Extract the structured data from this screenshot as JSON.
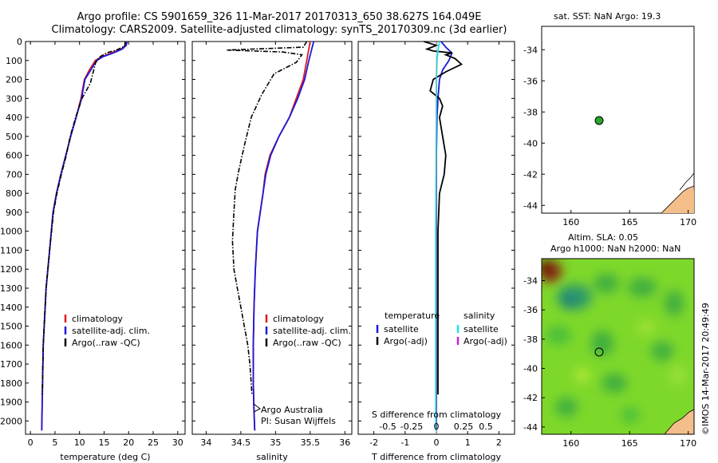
{
  "header": {
    "line1": "Argo profile: CS 5901659_326 11-Mar-2017 20170313_650 38.627S 164.049E",
    "line2": "Climatology: CARS2009. Satellite-adjusted climatology: synTS_20170309.nc (3d earlier)"
  },
  "map_top": {
    "title": "sat. SST: NaN Argo: 19.3"
  },
  "map_bottom": {
    "title1": "Altim. SLA: 0.05",
    "title2": "Argo h1000: NaN h2000: NaN"
  },
  "credit": "©IMOS 14-Mar-2017 20:49:49",
  "colors": {
    "climatology": "#e0191f",
    "satellite": "#1a1ad8",
    "argo": "#000000",
    "sal_satellite": "#1fe0e8",
    "sal_argo": "#d21fd2",
    "land": "#f4be8a",
    "float_marker": "#2aa52a"
  },
  "chart_data": [
    {
      "type": "line",
      "xlabel": "temperature (deg C)",
      "ylabel": "",
      "xlim": [
        -1,
        31.5
      ],
      "ylim": [
        2070,
        0
      ],
      "xticks": [
        0,
        5,
        10,
        15,
        20,
        25,
        30
      ],
      "yticks": [
        0,
        100,
        200,
        300,
        400,
        500,
        600,
        700,
        800,
        900,
        1000,
        1100,
        1200,
        1300,
        1400,
        1500,
        1600,
        1700,
        1800,
        1900,
        2000
      ],
      "legend": [
        "climatology",
        "satellite-adj. clim.",
        "Argo(..raw -QC)"
      ],
      "legend_position": "lower-middle",
      "series": [
        {
          "name": "climatology",
          "style": "solid",
          "x": [
            19.6,
            19.4,
            18.5,
            16.5,
            14.5,
            13.2,
            12.0,
            11.0,
            10.3,
            9.3,
            8.2,
            7.2,
            6.2,
            5.3,
            4.6,
            3.9,
            3.2,
            2.6,
            2.3
          ],
          "y": [
            0,
            20,
            40,
            60,
            80,
            100,
            150,
            200,
            300,
            400,
            500,
            600,
            700,
            800,
            900,
            1100,
            1300,
            1600,
            2050
          ]
        },
        {
          "name": "satellite-adj. clim.",
          "style": "solid",
          "x": [
            19.7,
            19.5,
            18.7,
            16.9,
            14.8,
            13.5,
            12.3,
            11.1,
            10.4,
            9.3,
            8.2,
            7.2,
            6.2,
            5.3,
            4.6,
            3.9,
            3.2,
            2.6,
            2.3
          ],
          "y": [
            0,
            20,
            40,
            60,
            80,
            100,
            150,
            200,
            300,
            400,
            500,
            600,
            700,
            800,
            900,
            1100,
            1300,
            1600,
            2050
          ]
        },
        {
          "name": "Argo(..raw -QC)",
          "style": "dashdot",
          "x": [
            19.3,
            19.2,
            17.5,
            15.5,
            14.2,
            13.3,
            12.8,
            12.2,
            10.5,
            9.2,
            8.1,
            7.3,
            6.3,
            5.4,
            4.7,
            3.9,
            3.2,
            2.6,
            2.4
          ],
          "y": [
            0,
            25,
            45,
            60,
            80,
            110,
            160,
            220,
            300,
            400,
            500,
            600,
            700,
            800,
            900,
            1100,
            1300,
            1600,
            1860
          ]
        }
      ]
    },
    {
      "type": "line",
      "xlabel": "salinity",
      "ylabel": "",
      "xlim": [
        33.8,
        36.1
      ],
      "ylim": [
        2070,
        0
      ],
      "xticks": [
        34,
        34.5,
        35,
        35.5,
        36
      ],
      "legend": [
        "climatology",
        "satellite-adj. clim.",
        "Argo(..raw -QC)"
      ],
      "legend_position": "lower-right",
      "annotations": [
        "Argo Australia",
        "PI: Susan Wijffels"
      ],
      "series": [
        {
          "name": "climatology",
          "style": "solid",
          "x": [
            35.5,
            35.45,
            35.4,
            35.3,
            35.2,
            35.05,
            34.92,
            34.85,
            34.82,
            34.78,
            34.74,
            34.71,
            34.69,
            34.68,
            34.68,
            34.69,
            34.7
          ],
          "y": [
            0,
            100,
            200,
            300,
            400,
            500,
            600,
            700,
            800,
            900,
            1000,
            1200,
            1400,
            1600,
            1800,
            1950,
            2050
          ]
        },
        {
          "name": "satellite-adj. clim.",
          "style": "solid",
          "x": [
            35.55,
            35.48,
            35.42,
            35.32,
            35.2,
            35.05,
            34.93,
            34.86,
            34.82,
            34.78,
            34.74,
            34.71,
            34.69,
            34.68,
            34.68,
            34.69,
            34.7
          ],
          "y": [
            0,
            100,
            200,
            300,
            400,
            500,
            600,
            700,
            800,
            900,
            1000,
            1200,
            1400,
            1600,
            1800,
            1950,
            2050
          ]
        },
        {
          "name": "Argo(..raw -QC)",
          "style": "dashdot",
          "x": [
            35.45,
            35.4,
            34.3,
            35.1,
            35.38,
            35.3,
            34.98,
            34.8,
            34.65,
            34.55,
            34.47,
            34.42,
            34.4,
            34.38,
            34.4,
            34.45,
            34.5,
            34.55,
            34.6,
            34.63,
            34.65,
            34.66
          ],
          "y": [
            0,
            30,
            45,
            55,
            70,
            110,
            170,
            280,
            400,
            550,
            680,
            780,
            900,
            1050,
            1200,
            1300,
            1400,
            1500,
            1600,
            1700,
            1800,
            1860
          ]
        }
      ]
    },
    {
      "type": "line",
      "xlabel": "T difference from climatology",
      "top_xlabel": "S difference from climatology",
      "ylabel": "",
      "xlim": [
        -2.5,
        2.5
      ],
      "ylim": [
        2070,
        0
      ],
      "xticks": [
        -2,
        -1,
        0,
        1,
        2
      ],
      "top_xticklabels": [
        "-0.5",
        "-0.25",
        "0",
        "0.25",
        "0.5"
      ],
      "legend_groups": {
        "temperature": [
          "satellite",
          "Argo(-adj)"
        ],
        "salinity": [
          "satellite",
          "Argo(-adj)"
        ]
      },
      "legend_position": "lower",
      "series": [
        {
          "name": "temperature satellite",
          "style": "solid",
          "x": [
            0.15,
            0.3,
            0.5,
            0.4,
            0.2,
            0.1,
            0.05,
            0.02,
            0,
            0,
            0,
            0
          ],
          "y": [
            0,
            30,
            60,
            100,
            150,
            200,
            300,
            400,
            600,
            1000,
            1500,
            2050
          ]
        },
        {
          "name": "temperature Argo(-adj)",
          "style": "solid",
          "x": [
            -0.4,
            0,
            -0.3,
            -0.1,
            0.5,
            0.3,
            0.6,
            0.8,
            0.3,
            -0.1,
            -0.2,
            0.1,
            0.2,
            0.1,
            0.2,
            0.3,
            0.25,
            0.1,
            0.05,
            0.05,
            0.05
          ],
          "y": [
            0,
            20,
            40,
            50,
            60,
            70,
            90,
            120,
            160,
            200,
            260,
            300,
            340,
            400,
            500,
            600,
            700,
            800,
            1000,
            1400,
            1860
          ]
        },
        {
          "name": "salinity satellite",
          "style": "solid",
          "x": [
            0.1,
            0.05,
            0.02,
            0,
            0,
            -0.01,
            -0.02,
            -0.02,
            -0.02,
            -0.02
          ],
          "y": [
            0,
            50,
            100,
            200,
            400,
            700,
            1000,
            1400,
            1800,
            2050
          ]
        }
      ]
    },
    {
      "type": "scatter",
      "title": "sat. SST: NaN Argo: 19.3",
      "xlim": [
        157.5,
        170.5
      ],
      "ylim": [
        -44.5,
        -32.5
      ],
      "xticks": [
        160,
        165,
        170
      ],
      "yticks": [
        -34,
        -36,
        -38,
        -40,
        -42,
        -44
      ],
      "points": [
        {
          "x": 164.049,
          "y": -38.627
        }
      ]
    },
    {
      "type": "heatmap",
      "title": "Altim. SLA: 0.05 / Argo h1000: NaN h2000: NaN",
      "xlim": [
        157.5,
        170.5
      ],
      "ylim": [
        -44.5,
        -32.5
      ],
      "xticks": [
        160,
        165,
        170
      ],
      "yticks": [
        -34,
        -36,
        -38,
        -40,
        -42,
        -44
      ],
      "points": [
        {
          "x": 164.049,
          "y": -38.627
        }
      ]
    }
  ]
}
